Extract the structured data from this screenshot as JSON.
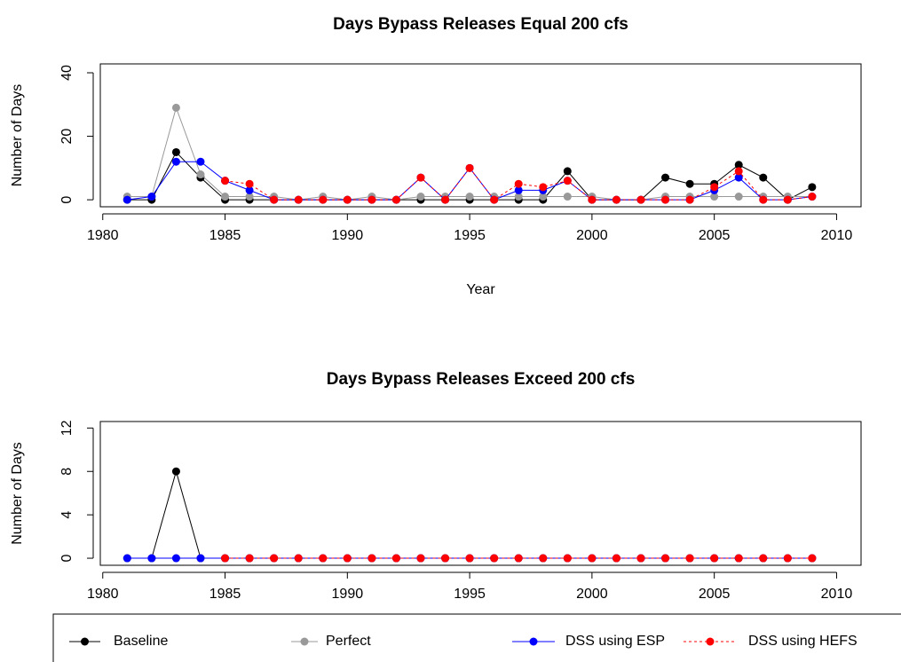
{
  "chart_data": [
    {
      "type": "line",
      "title": "Days Bypass Releases Equal 200 cfs",
      "x_label": "Year",
      "y_label": "Number of Days",
      "x": [
        1981,
        1982,
        1983,
        1984,
        1985,
        1986,
        1987,
        1988,
        1989,
        1990,
        1991,
        1992,
        1993,
        1994,
        1995,
        1996,
        1997,
        1998,
        1999,
        2000,
        2001,
        2002,
        2003,
        2004,
        2005,
        2006,
        2007,
        2008,
        2009
      ],
      "series": [
        {
          "name": "Baseline",
          "color": "#000000",
          "line_style": "solid",
          "values": [
            0,
            0,
            15,
            7,
            0,
            0,
            0,
            0,
            0,
            0,
            0,
            0,
            0,
            0,
            0,
            0,
            0,
            0,
            9,
            0,
            0,
            0,
            7,
            5,
            5,
            11,
            7,
            0,
            4
          ]
        },
        {
          "name": "Perfect",
          "color": "#999999",
          "line_style": "solid",
          "values": [
            1,
            1,
            29,
            8,
            1,
            1,
            1,
            0,
            1,
            0,
            1,
            0,
            1,
            1,
            1,
            1,
            1,
            1,
            1,
            1,
            0,
            0,
            1,
            1,
            1,
            1,
            1,
            1,
            1
          ]
        },
        {
          "name": "DSS using ESP",
          "color": "#0000ff",
          "line_style": "solid",
          "values": [
            0,
            1,
            12,
            12,
            6,
            3,
            0,
            0,
            0,
            0,
            0,
            0,
            7,
            0,
            10,
            0,
            3,
            3,
            6,
            0,
            0,
            0,
            0,
            0,
            3,
            7,
            0,
            0,
            1
          ]
        },
        {
          "name": "DSS using HEFS",
          "color": "#ff0000",
          "line_style": "dotted",
          "values": [
            null,
            null,
            null,
            null,
            6,
            5,
            0,
            0,
            0,
            0,
            0,
            0,
            7,
            0,
            10,
            0,
            5,
            4,
            6,
            0,
            0,
            0,
            0,
            0,
            4,
            9,
            0,
            0,
            1
          ]
        }
      ],
      "xlim": [
        1979.9,
        2011
      ],
      "xticks": [
        1980,
        1985,
        1990,
        1995,
        2000,
        2005,
        2010
      ],
      "ylim": [
        -2.2,
        42.8
      ],
      "yticks": [
        0,
        20,
        40
      ]
    },
    {
      "type": "line",
      "title": "Days Bypass Releases Exceed 200 cfs",
      "y_label": "Number of Days",
      "x": [
        1981,
        1982,
        1983,
        1984,
        1985,
        1986,
        1987,
        1988,
        1989,
        1990,
        1991,
        1992,
        1993,
        1994,
        1995,
        1996,
        1997,
        1998,
        1999,
        2000,
        2001,
        2002,
        2003,
        2004,
        2005,
        2006,
        2007,
        2008,
        2009
      ],
      "series": [
        {
          "color": "#000000",
          "line_style": "solid",
          "values": [
            0,
            0,
            8,
            0,
            0,
            0,
            0,
            0,
            0,
            0,
            0,
            0,
            0,
            0,
            0,
            0,
            0,
            0,
            0,
            0,
            0,
            0,
            0,
            0,
            0,
            0,
            0,
            0,
            0
          ]
        },
        {
          "color": "#999999",
          "line_style": "solid",
          "values": [
            0,
            0,
            0,
            0,
            0,
            0,
            0,
            0,
            0,
            0,
            0,
            0,
            0,
            0,
            0,
            0,
            0,
            0,
            0,
            0,
            0,
            0,
            0,
            0,
            0,
            0,
            0,
            0,
            0
          ]
        },
        {
          "color": "#0000ff",
          "line_style": "solid",
          "values": [
            0,
            0,
            0,
            0,
            0,
            0,
            0,
            0,
            0,
            0,
            0,
            0,
            0,
            0,
            0,
            0,
            0,
            0,
            0,
            0,
            0,
            0,
            0,
            0,
            0,
            0,
            0,
            0,
            0
          ]
        },
        {
          "color": "#ff0000",
          "line_style": "dotted",
          "values": [
            null,
            null,
            null,
            null,
            0,
            0,
            0,
            0,
            0,
            0,
            0,
            0,
            0,
            0,
            0,
            0,
            0,
            0,
            0,
            0,
            0,
            0,
            0,
            0,
            0,
            0,
            0,
            0,
            0
          ]
        }
      ],
      "xlim": [
        1979.9,
        2011
      ],
      "xticks": [
        1980,
        1985,
        1990,
        1995,
        2000,
        2005,
        2010
      ],
      "ylim": [
        -0.65,
        12.6
      ],
      "yticks": [
        0,
        4,
        8,
        12
      ]
    }
  ]
}
